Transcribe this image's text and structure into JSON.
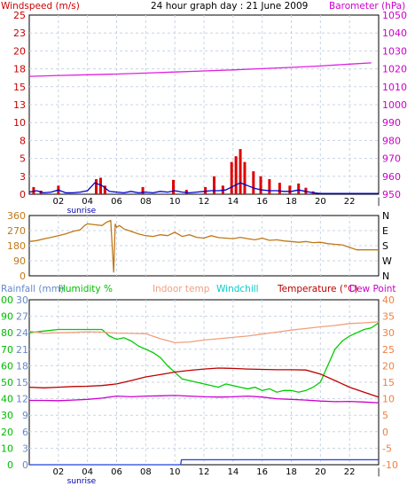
{
  "chart_data": [
    {
      "type": "bar",
      "title": "24 hour graph day : 21 June 2009",
      "ylabel_left": "Windspeed (m/s)",
      "ylabel_right": "Barometer (hPa)",
      "x_ticks": [
        "02",
        "04",
        "06",
        "08",
        "10",
        "12",
        "14",
        "16",
        "18",
        "20",
        "22"
      ],
      "x_annotation": "sunrise",
      "y_left_ticks": [
        "0",
        "3",
        "5",
        "8",
        "10",
        "13",
        "15",
        "18",
        "20",
        "23",
        "25"
      ],
      "y_right_ticks": [
        "950",
        "960",
        "970",
        "980",
        "990",
        "1000",
        "1010",
        "1020",
        "1030",
        "1040",
        "1050"
      ],
      "y_left_range": [
        0,
        25
      ],
      "y_right_range": [
        950,
        1050
      ],
      "x_range": [
        0,
        24
      ],
      "grid": true,
      "series": [
        {
          "name": "Barometer",
          "axis": "right",
          "color": "#e020e0",
          "x": [
            0,
            2,
            4,
            6,
            8,
            10,
            12,
            14,
            16,
            18,
            20,
            22,
            23.5
          ],
          "values": [
            1015.8,
            1016.3,
            1016.7,
            1017.1,
            1017.6,
            1018.2,
            1018.8,
            1019.4,
            1020.1,
            1020.8,
            1021.6,
            1022.6,
            1023.3
          ]
        },
        {
          "name": "Gust",
          "axis": "left",
          "color": "#dd0000",
          "x": [
            0.3,
            0.8,
            2.0,
            4.6,
            4.9,
            5.2,
            7.8,
            9.9,
            10.8,
            12.1,
            12.7,
            13.3,
            13.9,
            14.2,
            14.5,
            14.8,
            15.4,
            15.9,
            16.5,
            17.2,
            17.9,
            18.5,
            19.0,
            19.5
          ],
          "values": [
            1.0,
            0.5,
            1.2,
            2.1,
            2.3,
            1.2,
            1.0,
            2.0,
            0.6,
            1.0,
            2.5,
            1.2,
            4.5,
            5.3,
            6.3,
            4.5,
            3.2,
            2.5,
            2.1,
            1.6,
            1.2,
            1.5,
            0.9,
            0.4
          ]
        },
        {
          "name": "Average",
          "axis": "left",
          "color": "#0000cc",
          "x": [
            0,
            0.5,
            1,
            1.5,
            2,
            2.5,
            3,
            3.5,
            4,
            4.5,
            5,
            5.5,
            6,
            6.5,
            7,
            7.5,
            8,
            8.5,
            9,
            9.5,
            10,
            10.5,
            11,
            11.5,
            12,
            12.5,
            13,
            13.5,
            14,
            14.5,
            15,
            15.5,
            16,
            16.5,
            17,
            17.5,
            18,
            18.5,
            19,
            19.5,
            20,
            21,
            22,
            23,
            24
          ],
          "values": [
            0.3,
            0.5,
            0.2,
            0.3,
            0.6,
            0.2,
            0.2,
            0.3,
            0.5,
            1.6,
            1.2,
            0.4,
            0.3,
            0.2,
            0.4,
            0.2,
            0.3,
            0.2,
            0.4,
            0.3,
            0.5,
            0.3,
            0.2,
            0.3,
            0.4,
            0.5,
            0.5,
            0.6,
            1.1,
            1.6,
            1.2,
            0.8,
            0.6,
            0.5,
            0.5,
            0.4,
            0.4,
            0.6,
            0.4,
            0.2,
            0.1,
            0.1,
            0.1,
            0.1,
            0.1
          ]
        }
      ]
    },
    {
      "type": "line",
      "ylabel_right_ticks": [
        "N",
        "W",
        "S",
        "E",
        "N"
      ],
      "y_left_ticks": [
        "0",
        "90",
        "180",
        "270",
        "360"
      ],
      "y_range": [
        0,
        360
      ],
      "x_range": [
        0,
        24
      ],
      "grid": true,
      "series": [
        {
          "name": "Wind direction",
          "color": "#c07818",
          "x": [
            0,
            0.5,
            1,
            1.5,
            2,
            2.5,
            3,
            3.5,
            3.8,
            4,
            4.5,
            5,
            5.3,
            5.6,
            5.8,
            5.9,
            6.0,
            6.2,
            6.5,
            7,
            7.5,
            8,
            8.5,
            9,
            9.5,
            10,
            10.5,
            11,
            11.5,
            12,
            12.5,
            13,
            13.5,
            14,
            14.5,
            15,
            15.5,
            16,
            16.5,
            17,
            17.5,
            18,
            18.5,
            19,
            19.5,
            20,
            20.5,
            21,
            21.5,
            22,
            22.5,
            23,
            23.5,
            24
          ],
          "values": [
            205,
            210,
            220,
            230,
            240,
            250,
            265,
            275,
            300,
            310,
            305,
            300,
            320,
            330,
            20,
            310,
            290,
            300,
            280,
            265,
            250,
            240,
            235,
            245,
            240,
            260,
            235,
            245,
            230,
            225,
            240,
            228,
            225,
            222,
            230,
            222,
            215,
            225,
            212,
            215,
            208,
            205,
            200,
            205,
            198,
            200,
            192,
            188,
            185,
            170,
            155,
            155,
            155,
            155
          ]
        }
      ]
    },
    {
      "type": "line",
      "legend": [
        "Rainfall (mm)",
        "Humidity %",
        "Indoor temp",
        "Windchill",
        "Temperature (°C)",
        "Dew Point"
      ],
      "y_rainfall_ticks": [
        "0",
        "3",
        "6",
        "9",
        "12",
        "15",
        "18",
        "21",
        "24",
        "27",
        "30"
      ],
      "y_humidity_ticks": [
        "0",
        "10",
        "20",
        "30",
        "40",
        "50",
        "60",
        "70",
        "80",
        "90",
        "100"
      ],
      "y_temp_ticks": [
        "-10",
        "-5",
        "0",
        "5",
        "10",
        "15",
        "20",
        "25",
        "30",
        "35",
        "40"
      ],
      "x_ticks": [
        "02",
        "04",
        "06",
        "08",
        "10",
        "12",
        "14",
        "16",
        "18",
        "20",
        "22"
      ],
      "x_annotation": "sunrise",
      "x_range": [
        0,
        24
      ],
      "temp_range": [
        -10,
        40
      ],
      "humidity_range": [
        0,
        100
      ],
      "rain_range": [
        0,
        30
      ],
      "grid": true,
      "series": [
        {
          "name": "Humidity %",
          "axis": "humidity",
          "color": "#00cc00",
          "x": [
            0,
            1,
            2,
            3,
            4,
            5,
            5.5,
            6,
            6.5,
            7,
            7.5,
            8,
            8.5,
            9,
            9.5,
            10,
            10.5,
            11,
            11.5,
            12,
            12.5,
            13,
            13.5,
            14,
            14.5,
            15,
            15.5,
            16,
            16.5,
            17,
            17.5,
            18,
            18.5,
            19,
            19.5,
            20,
            20.5,
            21,
            21.5,
            22,
            22.5,
            23,
            23.5,
            24
          ],
          "values": [
            80,
            81,
            82,
            82,
            82,
            82,
            78,
            76,
            77,
            75,
            72,
            70,
            68,
            65,
            60,
            56,
            52,
            51,
            50,
            49,
            48,
            47,
            49,
            48,
            47,
            46,
            47,
            45,
            46,
            44,
            45,
            45,
            44,
            45,
            47,
            50,
            60,
            70,
            75,
            78,
            80,
            82,
            83,
            86
          ]
        },
        {
          "name": "Indoor temp",
          "axis": "temp",
          "color": "#f0a080",
          "x": [
            0,
            1,
            2,
            3,
            4,
            5,
            6,
            7,
            8,
            9,
            10,
            11,
            12,
            13,
            14,
            15,
            16,
            17,
            18,
            19,
            20,
            21,
            22,
            23,
            24
          ],
          "values": [
            30.5,
            29.8,
            30.0,
            30.1,
            30.3,
            30.2,
            29.9,
            29.8,
            29.7,
            28.2,
            27.0,
            27.2,
            27.8,
            28.2,
            28.6,
            29.0,
            29.6,
            30.2,
            30.8,
            31.3,
            31.8,
            32.2,
            32.8,
            33.0,
            33.3
          ]
        },
        {
          "name": "Temperature (°C)",
          "axis": "temp",
          "color": "#bb0000",
          "x": [
            0,
            1,
            2,
            3,
            4,
            5,
            6,
            7,
            8,
            9,
            10,
            11,
            12,
            13,
            14,
            15,
            16,
            17,
            18,
            19,
            20,
            21,
            22,
            23,
            24
          ],
          "values": [
            13.5,
            13.3,
            13.5,
            13.7,
            13.8,
            14.0,
            14.5,
            15.5,
            16.6,
            17.3,
            18.1,
            18.6,
            19.0,
            19.3,
            19.2,
            19.0,
            18.9,
            18.8,
            18.8,
            18.7,
            17.5,
            15.5,
            13.5,
            12.0,
            10.5
          ]
        },
        {
          "name": "Dew Point",
          "axis": "temp",
          "color": "#cc00cc",
          "x": [
            0,
            1,
            2,
            3,
            4,
            5,
            6,
            7,
            8,
            9,
            10,
            11,
            12,
            13,
            14,
            15,
            16,
            17,
            18,
            19,
            20,
            21,
            22,
            23,
            24
          ],
          "values": [
            9.5,
            9.5,
            9.4,
            9.6,
            9.8,
            10.2,
            10.8,
            10.6,
            10.8,
            10.9,
            11.0,
            10.8,
            10.6,
            10.5,
            10.6,
            10.8,
            10.5,
            10.0,
            9.8,
            9.6,
            9.3,
            9.1,
            9.2,
            9.0,
            8.8
          ]
        },
        {
          "name": "Rainfall (mm)",
          "axis": "rain",
          "color": "#2040dd",
          "x": [
            0,
            10.4,
            10.45,
            24
          ],
          "values": [
            0,
            0,
            0.9,
            0.9
          ]
        }
      ]
    }
  ]
}
